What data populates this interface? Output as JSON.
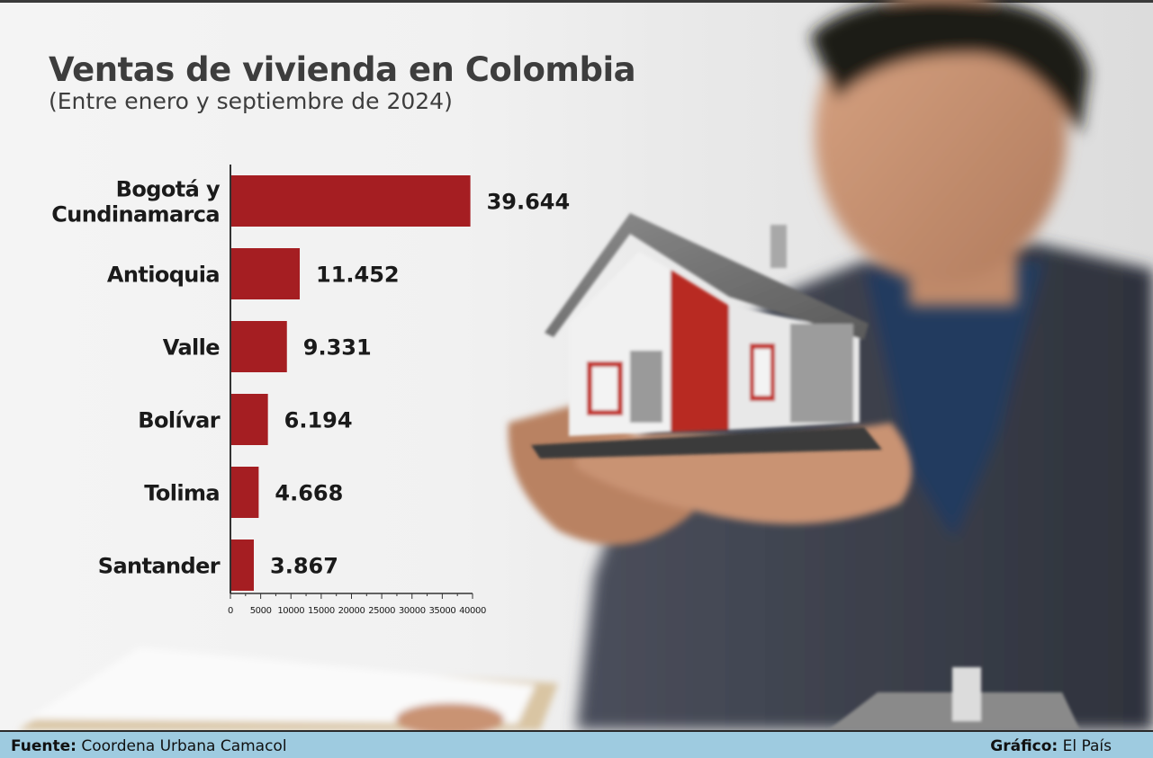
{
  "title": "Ventas de vivienda en Colombia",
  "subtitle": "(Entre enero y septiembre de 2024)",
  "chart_data": {
    "type": "bar",
    "orientation": "horizontal",
    "title": "Ventas de vivienda en Colombia",
    "subtitle": "(Entre enero y septiembre de 2024)",
    "categories": [
      [
        "Bogotá y",
        "Cundinamarca"
      ],
      [
        "Antioquia"
      ],
      [
        "Valle"
      ],
      [
        "Bolívar"
      ],
      [
        "Tolima"
      ],
      [
        "Santander"
      ]
    ],
    "values": [
      39644,
      11452,
      9331,
      6194,
      4668,
      3867
    ],
    "value_labels": [
      "39.644",
      "11.452",
      "9.331",
      "6.194",
      "4.668",
      "3.867"
    ],
    "x_ticks": [
      0,
      5000,
      10000,
      15000,
      20000,
      25000,
      30000,
      35000,
      40000
    ],
    "xlim": [
      0,
      40000
    ],
    "xlabel": "",
    "ylabel": "",
    "grid": false,
    "bar_color": "#a51e22"
  },
  "footer": {
    "source_key": "Fuente:",
    "source_value": "Coordena Urbana Camacol",
    "credit_key": "Gráfico:",
    "credit_value": "El País"
  },
  "colors": {
    "bar": "#a51e22",
    "footer_bg": "#9ecbe0",
    "title": "#3d3d3d"
  }
}
